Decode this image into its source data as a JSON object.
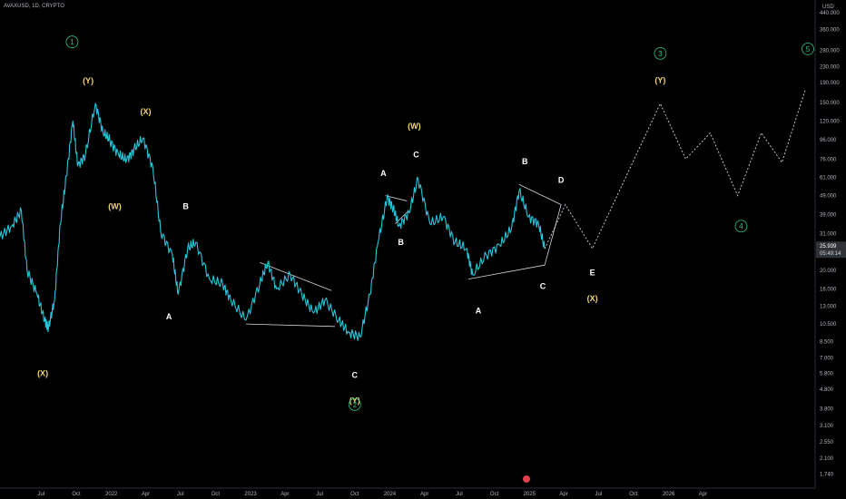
{
  "header": {
    "symbol": "AVAXUSD, 1D, CRYPTO"
  },
  "colors": {
    "price": "#26c6da",
    "projection": "#d1d4dc",
    "background": "#000000",
    "wave_yellow": "#f5d76e",
    "wave_white": "#ffffff",
    "wave_green": "#2ec27e"
  },
  "chart_data": {
    "type": "line",
    "title": "",
    "y_scale": "log",
    "currency": "USD",
    "ylim": [
      1.6,
      480
    ],
    "y_ticks": [
      "440.000",
      "360.000",
      "280.000",
      "230.000",
      "190.000",
      "150.000",
      "120.000",
      "96.000",
      "76.000",
      "61.000",
      "49.000",
      "39.000",
      "31.000",
      "25.000",
      "20.000",
      "16.000",
      "13.000",
      "10.500",
      "8.500",
      "7.000",
      "5.800",
      "4.800",
      "3.800",
      "3.100",
      "2.550",
      "2.100",
      "1.740"
    ],
    "y_tick_values": [
      440,
      360,
      280,
      230,
      190,
      150,
      120,
      96,
      76,
      61,
      49,
      39,
      31,
      25,
      20,
      16,
      13,
      10.5,
      8.5,
      7,
      5.8,
      4.8,
      3.8,
      3.1,
      2.55,
      2.1,
      1.74
    ],
    "x_ticks": [
      "Jul",
      "Oct",
      "2022",
      "Apr",
      "Jul",
      "Oct",
      "2023",
      "Apr",
      "Jul",
      "Oct",
      "2024",
      "Apr",
      "Jul",
      "Oct",
      "2025",
      "Apr",
      "Jul",
      "Oct",
      "2026",
      "Apr"
    ],
    "x_tick_dates": [
      "2021-07-01",
      "2021-10-01",
      "2022-01-01",
      "2022-04-01",
      "2022-07-01",
      "2022-10-01",
      "2023-01-01",
      "2023-04-01",
      "2023-07-01",
      "2023-10-01",
      "2024-01-01",
      "2024-04-01",
      "2024-07-01",
      "2024-10-01",
      "2025-01-01",
      "2025-04-01",
      "2025-07-01",
      "2025-10-01",
      "2026-01-01",
      "2026-04-01"
    ],
    "current_price": "25.939",
    "countdown": "05:49:14",
    "series": [
      {
        "values": [
          [
            "2021-03-15",
            30
          ],
          [
            "2021-04-15",
            34
          ],
          [
            "2021-05-10",
            41
          ],
          [
            "2021-05-25",
            20
          ],
          [
            "2021-06-20",
            15
          ],
          [
            "2021-07-10",
            11
          ],
          [
            "2021-07-20",
            10
          ],
          [
            "2021-08-05",
            14
          ],
          [
            "2021-08-20",
            35
          ],
          [
            "2021-09-05",
            62
          ],
          [
            "2021-09-22",
            120
          ],
          [
            "2021-10-05",
            70
          ],
          [
            "2021-10-25",
            80
          ],
          [
            "2021-11-20",
            148
          ],
          [
            "2021-12-10",
            105
          ],
          [
            "2021-12-28",
            95
          ],
          [
            "2022-01-20",
            80
          ],
          [
            "2022-02-10",
            75
          ],
          [
            "2022-03-01",
            85
          ],
          [
            "2022-03-25",
            98
          ],
          [
            "2022-04-20",
            68
          ],
          [
            "2022-05-10",
            32
          ],
          [
            "2022-06-10",
            24
          ],
          [
            "2022-06-25",
            15
          ],
          [
            "2022-07-20",
            26
          ],
          [
            "2022-08-10",
            28
          ],
          [
            "2022-09-15",
            18
          ],
          [
            "2022-10-20",
            17
          ],
          [
            "2022-11-10",
            14
          ],
          [
            "2022-12-20",
            11
          ],
          [
            "2023-01-25",
            17
          ],
          [
            "2023-02-15",
            22
          ],
          [
            "2023-03-10",
            16
          ],
          [
            "2023-04-15",
            19
          ],
          [
            "2023-05-15",
            15
          ],
          [
            "2023-06-15",
            12
          ],
          [
            "2023-07-15",
            14
          ],
          [
            "2023-08-20",
            11
          ],
          [
            "2023-09-15",
            9.5
          ],
          [
            "2023-10-15",
            9
          ],
          [
            "2023-11-10",
            15
          ],
          [
            "2023-12-01",
            28
          ],
          [
            "2023-12-25",
            48
          ],
          [
            "2024-01-10",
            42
          ],
          [
            "2024-01-25",
            34
          ],
          [
            "2024-02-20",
            40
          ],
          [
            "2024-03-15",
            60
          ],
          [
            "2024-04-15",
            35
          ],
          [
            "2024-05-20",
            38
          ],
          [
            "2024-06-20",
            28
          ],
          [
            "2024-07-20",
            26
          ],
          [
            "2024-08-05",
            19
          ],
          [
            "2024-09-10",
            24
          ],
          [
            "2024-10-15",
            27
          ],
          [
            "2024-11-15",
            33
          ],
          [
            "2024-12-05",
            52
          ],
          [
            "2024-12-30",
            38
          ],
          [
            "2025-01-25",
            35
          ],
          [
            "2025-02-10",
            25.9
          ]
        ]
      },
      {
        "name": "projection",
        "values": [
          [
            "2025-02-10",
            25.9
          ],
          [
            "2025-04-05",
            44
          ],
          [
            "2025-06-15",
            26
          ],
          [
            "2025-12-10",
            148
          ],
          [
            "2026-02-15",
            76
          ],
          [
            "2026-04-20",
            104
          ],
          [
            "2026-07-01",
            49
          ],
          [
            "2026-09-01",
            104
          ],
          [
            "2026-10-25",
            73
          ],
          [
            "2026-12-25",
            174
          ]
        ]
      }
    ],
    "trendlines": [
      [
        [
          "2022-12-20",
          10.5
        ],
        [
          "2023-08-10",
          10.2
        ]
      ],
      [
        [
          "2023-01-25",
          22
        ],
        [
          "2023-08-01",
          15.7
        ]
      ],
      [
        [
          "2023-12-20",
          49
        ],
        [
          "2024-02-15",
          46
        ]
      ],
      [
        [
          "2024-01-15",
          35
        ],
        [
          "2024-02-20",
          41
        ]
      ],
      [
        [
          "2024-07-25",
          18
        ],
        [
          "2025-02-10",
          21.3
        ]
      ],
      [
        [
          "2024-12-05",
          56
        ],
        [
          "2025-03-25",
          44
        ]
      ],
      [
        [
          "2025-02-10",
          21.3
        ],
        [
          "2025-03-25",
          44
        ]
      ]
    ],
    "annotations": [
      {
        "text": "(Y)",
        "color": "yellow",
        "date": "2021-11-01",
        "price": 194
      },
      {
        "text": "(X)",
        "color": "yellow",
        "date": "2022-04-01",
        "price": 134
      },
      {
        "text": "(W)",
        "color": "yellow",
        "date": "2022-01-10",
        "price": 43
      },
      {
        "text": "(X)",
        "color": "yellow",
        "date": "2021-07-05",
        "price": 5.8
      },
      {
        "text": "B",
        "color": "white",
        "date": "2022-07-15",
        "price": 43
      },
      {
        "text": "A",
        "color": "white",
        "date": "2022-06-01",
        "price": 11.5
      },
      {
        "text": "C",
        "color": "white",
        "date": "2023-10-01",
        "price": 5.7
      },
      {
        "text": "(Y)",
        "color": "yellow",
        "date": "2023-10-01",
        "price": 4.2
      },
      {
        "text": "A",
        "color": "white",
        "date": "2023-12-15",
        "price": 64
      },
      {
        "text": "(W)",
        "color": "yellow",
        "date": "2024-03-05",
        "price": 113
      },
      {
        "text": "C",
        "color": "white",
        "date": "2024-03-10",
        "price": 80
      },
      {
        "text": "B",
        "color": "white",
        "date": "2024-01-30",
        "price": 28
      },
      {
        "text": "B",
        "color": "white",
        "date": "2024-12-20",
        "price": 74
      },
      {
        "text": "D",
        "color": "white",
        "date": "2025-03-25",
        "price": 59
      },
      {
        "text": "A",
        "color": "white",
        "date": "2024-08-20",
        "price": 12.3
      },
      {
        "text": "C",
        "color": "white",
        "date": "2025-02-05",
        "price": 16.5
      },
      {
        "text": "E",
        "color": "white",
        "date": "2025-06-15",
        "price": 19.5
      },
      {
        "text": "(X)",
        "color": "yellow",
        "date": "2025-06-15",
        "price": 14.3
      },
      {
        "text": "(Y)",
        "color": "yellow",
        "date": "2025-12-10",
        "price": 196
      },
      {
        "text": "1",
        "color": "green",
        "date": "2021-09-20",
        "price": 310
      },
      {
        "text": "2",
        "color": "green",
        "date": "2023-10-01",
        "price": 4.0
      },
      {
        "text": "3",
        "color": "green",
        "date": "2025-12-10",
        "price": 270
      },
      {
        "text": "4",
        "color": "green",
        "date": "2026-07-10",
        "price": 34
      },
      {
        "text": "5",
        "color": "green",
        "date": "2027-01-01",
        "price": 285
      }
    ]
  }
}
